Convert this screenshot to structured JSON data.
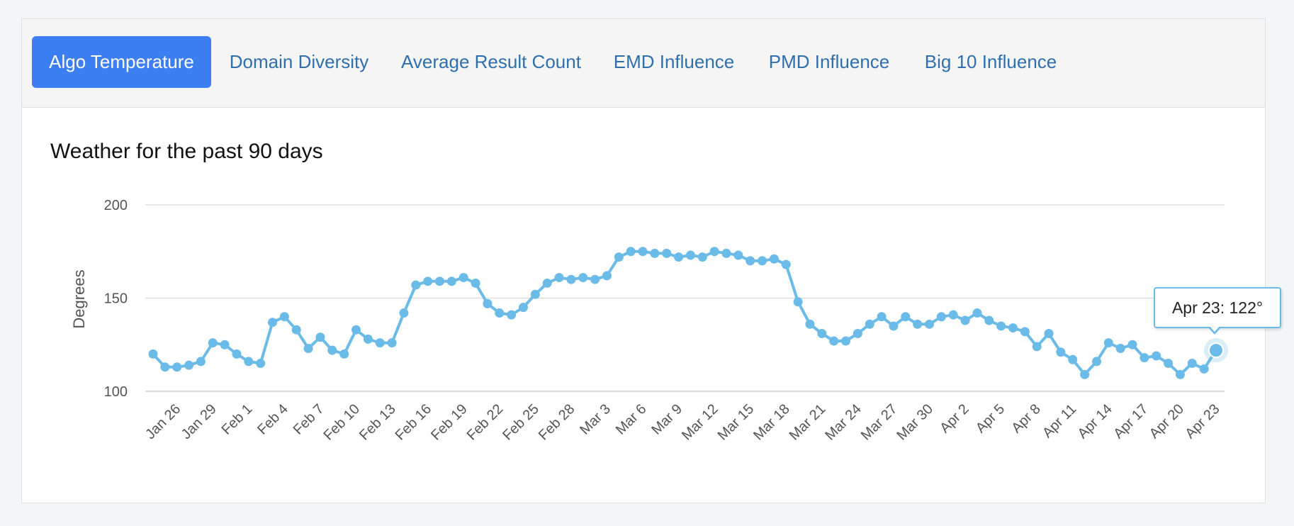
{
  "tabs": [
    {
      "label": "Algo Temperature",
      "active": true
    },
    {
      "label": "Domain Diversity",
      "active": false
    },
    {
      "label": "Average Result Count",
      "active": false
    },
    {
      "label": "EMD Influence",
      "active": false
    },
    {
      "label": "PMD Influence",
      "active": false
    },
    {
      "label": "Big 10 Influence",
      "active": false
    }
  ],
  "colors": {
    "accent": "#3c7ff2",
    "tab_text": "#2f6fae",
    "series": "#6bbbe8",
    "grid": "#dddddd"
  },
  "tooltip": {
    "text": "Apr 23: 122°"
  },
  "chart_data": {
    "type": "line",
    "title": "Weather for the past 90 days",
    "xlabel": "",
    "ylabel": "Degrees",
    "ylim": [
      100,
      200
    ],
    "yticks": [
      100,
      150,
      200
    ],
    "grid": true,
    "xtick_labels": [
      "Jan 26",
      "Jan 29",
      "Feb 1",
      "Feb 4",
      "Feb 7",
      "Feb 10",
      "Feb 13",
      "Feb 16",
      "Feb 19",
      "Feb 22",
      "Feb 25",
      "Feb 28",
      "Mar 3",
      "Mar 6",
      "Mar 9",
      "Mar 12",
      "Mar 15",
      "Mar 18",
      "Mar 21",
      "Mar 24",
      "Mar 27",
      "Mar 30",
      "Apr 2",
      "Apr 5",
      "Apr 8",
      "Apr 11",
      "Apr 14",
      "Apr 17",
      "Apr 20",
      "Apr 23"
    ],
    "highlight": {
      "label": "Apr 23",
      "value": 122
    },
    "series": [
      {
        "name": "Algo Temperature",
        "values": [
          120,
          113,
          113,
          114,
          116,
          126,
          125,
          120,
          116,
          115,
          137,
          140,
          133,
          123,
          129,
          122,
          120,
          133,
          128,
          126,
          126,
          142,
          157,
          159,
          159,
          159,
          161,
          158,
          147,
          142,
          141,
          145,
          152,
          158,
          161,
          160,
          161,
          160,
          162,
          172,
          175,
          175,
          174,
          174,
          172,
          173,
          172,
          175,
          174,
          173,
          170,
          170,
          171,
          168,
          148,
          136,
          131,
          127,
          127,
          131,
          136,
          140,
          135,
          140,
          136,
          136,
          140,
          141,
          138,
          142,
          138,
          135,
          134,
          132,
          124,
          131,
          121,
          117,
          109,
          116,
          126,
          123,
          125,
          118,
          119,
          115,
          109,
          115,
          112,
          122
        ]
      }
    ]
  }
}
